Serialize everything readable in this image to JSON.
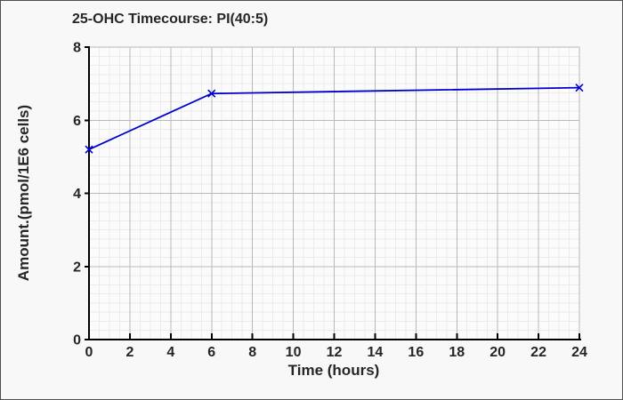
{
  "chart_data": {
    "type": "line",
    "title": "25-OHC Timecourse: PI(40:5)",
    "xlabel": "Time (hours)",
    "ylabel": "Amount.(pmol/1E6 cells)",
    "series": [
      {
        "name": "PI(40:5)",
        "x": [
          0,
          6,
          24
        ],
        "y": [
          5.2,
          6.73,
          6.89
        ],
        "marker": "x",
        "color": "#0000cd"
      }
    ],
    "xlim": [
      0,
      24
    ],
    "ylim": [
      0,
      8
    ],
    "xticks": [
      0,
      2,
      4,
      6,
      8,
      10,
      12,
      14,
      16,
      18,
      20,
      22,
      24
    ],
    "yticks": [
      0,
      2,
      4,
      6,
      8
    ],
    "x_minor_step": 0.5,
    "y_minor_step": 0.25,
    "grid": "major+minor",
    "legend": "none",
    "colors": {
      "line": "#0000cd",
      "plot_bg": "#fbfbfb",
      "page_bg": "#f8f8f8",
      "grid_minor": "#ebebeb",
      "grid_major": "#b9b9b9",
      "axis": "#000000",
      "text": "#262626",
      "frame_border": "#4f4f4f"
    }
  }
}
